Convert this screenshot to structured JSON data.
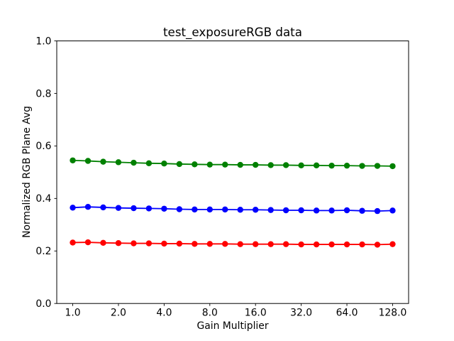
{
  "chart_data": {
    "type": "line",
    "title": "test_exposureRGB data",
    "xlabel": "Gain Multiplier",
    "ylabel": "Normalized RGB Plane Avg",
    "xscale": "log2",
    "xlim_log2": [
      -0.35,
      7.35
    ],
    "ylim": [
      0.0,
      1.0
    ],
    "xticks": [
      1.0,
      2.0,
      4.0,
      8.0,
      16.0,
      32.0,
      64.0,
      128.0
    ],
    "xtick_labels": [
      "1.0",
      "2.0",
      "4.0",
      "8.0",
      "16.0",
      "32.0",
      "64.0",
      "128.0"
    ],
    "yticks": [
      0.0,
      0.2,
      0.4,
      0.6,
      0.8,
      1.0
    ],
    "ytick_labels": [
      "0.0",
      "0.2",
      "0.4",
      "0.6",
      "0.8",
      "1.0"
    ],
    "grid": false,
    "legend_position": "none",
    "marker": "circle",
    "x": [
      1.0,
      1.26,
      1.587,
      2.0,
      2.52,
      3.175,
      4.0,
      5.04,
      6.35,
      8.0,
      10.079,
      12.699,
      16.0,
      20.159,
      25.398,
      32.0,
      40.317,
      50.797,
      64.0,
      80.635,
      101.594,
      128.0
    ],
    "series": [
      {
        "name": "green-plane",
        "color": "#008000",
        "values": [
          0.545,
          0.543,
          0.54,
          0.538,
          0.536,
          0.534,
          0.533,
          0.531,
          0.53,
          0.529,
          0.529,
          0.528,
          0.528,
          0.527,
          0.527,
          0.526,
          0.526,
          0.525,
          0.525,
          0.524,
          0.524,
          0.523
        ]
      },
      {
        "name": "blue-plane",
        "color": "#0000ff",
        "values": [
          0.365,
          0.368,
          0.366,
          0.364,
          0.363,
          0.362,
          0.361,
          0.359,
          0.358,
          0.358,
          0.358,
          0.357,
          0.357,
          0.356,
          0.355,
          0.355,
          0.354,
          0.354,
          0.355,
          0.353,
          0.352,
          0.354
        ]
      },
      {
        "name": "red-plane",
        "color": "#ff0000",
        "values": [
          0.232,
          0.233,
          0.231,
          0.23,
          0.229,
          0.229,
          0.228,
          0.228,
          0.227,
          0.227,
          0.227,
          0.226,
          0.226,
          0.226,
          0.226,
          0.225,
          0.225,
          0.225,
          0.225,
          0.225,
          0.224,
          0.226
        ]
      }
    ],
    "style": {
      "spine_color": "#000000",
      "background": "#ffffff",
      "line_width": 1.8,
      "marker_radius": 4.2
    }
  }
}
